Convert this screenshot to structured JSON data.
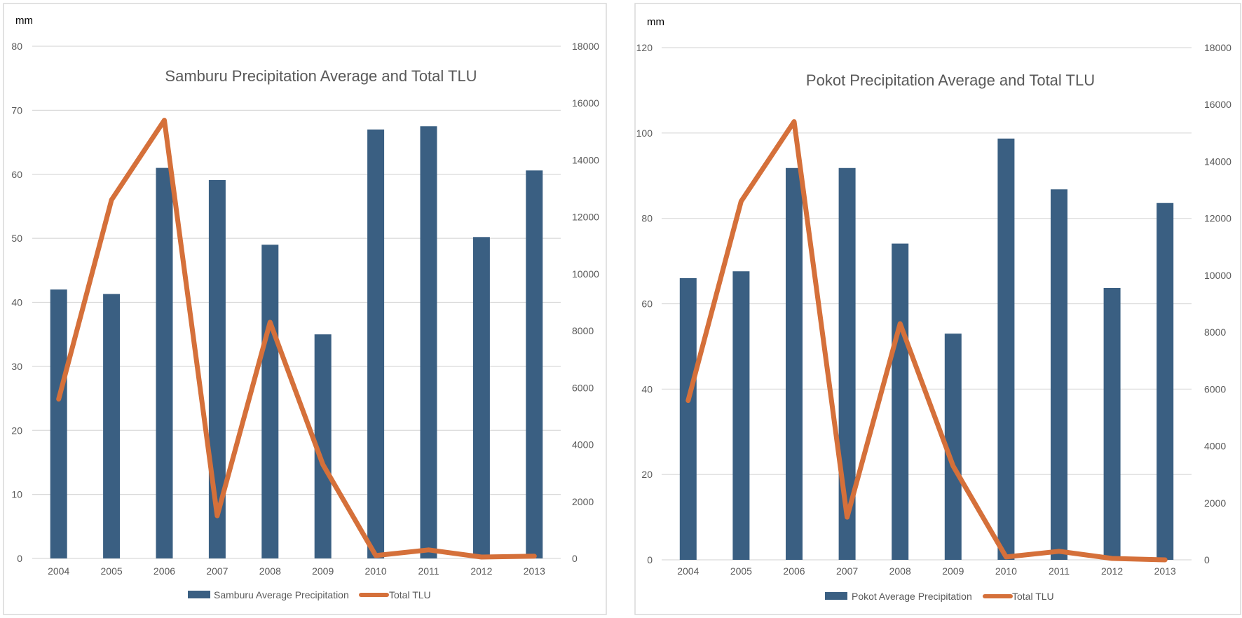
{
  "chart_data": [
    {
      "type": "bar+line",
      "title": "Samburu Precipitation Average and Total TLU",
      "ylabel": "mm",
      "categories": [
        "2004",
        "2005",
        "2006",
        "2007",
        "2008",
        "2009",
        "2010",
        "2011",
        "2012",
        "2013"
      ],
      "ylim": [
        0,
        80
      ],
      "yticks": [
        0,
        10,
        20,
        30,
        40,
        50,
        60,
        70,
        80
      ],
      "y2lim": [
        0,
        18000
      ],
      "y2ticks": [
        0,
        2000,
        4000,
        6000,
        8000,
        10000,
        12000,
        14000,
        16000,
        18000
      ],
      "series": [
        {
          "name": "Samburu Average Precipitation",
          "kind": "bar",
          "axis": "left",
          "color": "#3a5f82",
          "values": [
            42,
            41.3,
            61,
            59.1,
            49,
            35,
            67,
            67.5,
            50.2,
            60.6
          ]
        },
        {
          "name": "Total TLU",
          "kind": "line",
          "axis": "right",
          "color": "#d5703a",
          "values": [
            5600,
            12600,
            15400,
            1500,
            8300,
            3300,
            100,
            300,
            50,
            80
          ]
        }
      ],
      "legend": "bottom",
      "grid": true
    },
    {
      "type": "bar+line",
      "title": "Pokot Precipitation Average and Total TLU",
      "ylabel": "mm",
      "categories": [
        "2004",
        "2005",
        "2006",
        "2007",
        "2008",
        "2009",
        "2010",
        "2011",
        "2012",
        "2013"
      ],
      "ylim": [
        0,
        120
      ],
      "yticks": [
        0,
        20,
        40,
        60,
        80,
        100,
        120
      ],
      "y2lim": [
        0,
        18000
      ],
      "y2ticks": [
        0,
        2000,
        4000,
        6000,
        8000,
        10000,
        12000,
        14000,
        16000,
        18000
      ],
      "series": [
        {
          "name": "Pokot Average Precipitation",
          "kind": "bar",
          "axis": "left",
          "color": "#3a5f82",
          "values": [
            66,
            67.6,
            91.8,
            91.8,
            74.1,
            53,
            98.7,
            86.8,
            63.7,
            83.6
          ]
        },
        {
          "name": "Total TLU",
          "kind": "line",
          "axis": "right",
          "color": "#d5703a",
          "values": [
            5600,
            12600,
            15400,
            1500,
            8300,
            3300,
            100,
            300,
            50,
            0
          ]
        }
      ],
      "legend": "bottom",
      "grid": true
    }
  ]
}
